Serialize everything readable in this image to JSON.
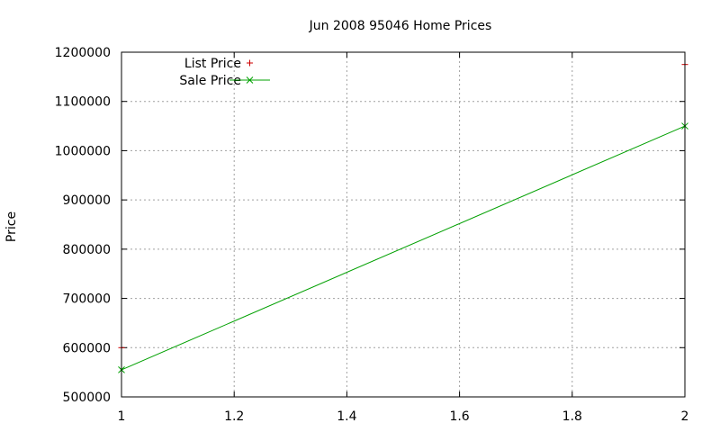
{
  "chart_data": {
    "type": "line",
    "title": "Jun 2008 95046 Home Prices",
    "xlabel": "",
    "ylabel": "Price",
    "xlim": [
      1,
      2
    ],
    "ylim": [
      500000,
      1200000
    ],
    "xticks": [
      1,
      1.2,
      1.4,
      1.6,
      1.8,
      2
    ],
    "xtick_labels": [
      "1",
      "1.2",
      "1.4",
      "1.6",
      "1.8",
      "2"
    ],
    "yticks": [
      500000,
      600000,
      700000,
      800000,
      900000,
      1000000,
      1100000,
      1200000
    ],
    "ytick_labels": [
      "500000",
      "600000",
      "700000",
      "800000",
      "900000",
      "1000000",
      "1100000",
      "1200000"
    ],
    "grid": true,
    "legend_position": "top-left",
    "series": [
      {
        "name": "List Price",
        "style": "points",
        "marker": "plus",
        "color": "#cc0000",
        "x": [
          1,
          2
        ],
        "y": [
          600000,
          1175000
        ]
      },
      {
        "name": "Sale Price",
        "style": "linespoints",
        "marker": "cross",
        "color": "#00a000",
        "x": [
          1,
          2
        ],
        "y": [
          555000,
          1050000
        ]
      }
    ]
  }
}
